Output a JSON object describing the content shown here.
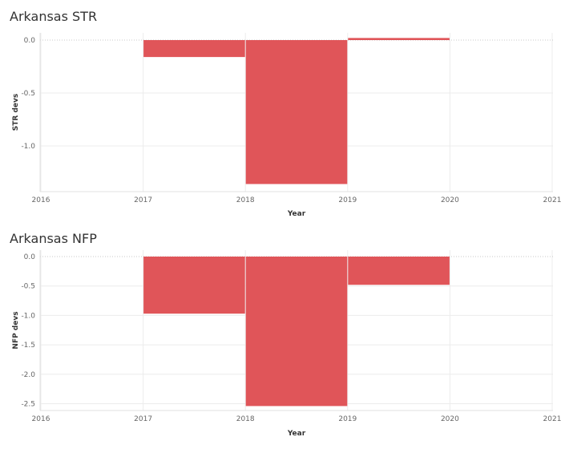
{
  "chart_data": [
    {
      "type": "bar",
      "title": "Arkansas STR",
      "xlabel": "Year",
      "ylabel": "STR devs",
      "x_ticks": [
        "2016",
        "2017",
        "2018",
        "2019",
        "2020",
        "2021"
      ],
      "y_ticks": [
        "0.0",
        "-0.5",
        "-1.0"
      ],
      "xlim": [
        2016,
        2021
      ],
      "ylim": [
        -1.42,
        0.0
      ],
      "bars": [
        {
          "start": 2017,
          "end": 2018,
          "value": -0.16
        },
        {
          "start": 2018,
          "end": 2019,
          "value": -1.36
        },
        {
          "start": 2019,
          "end": 2020,
          "value": 0.02
        }
      ],
      "bar_color": "#e05559",
      "grid": true
    },
    {
      "type": "bar",
      "title": "Arkansas NFP",
      "xlabel": "Year",
      "ylabel": "NFP devs",
      "x_ticks": [
        "2016",
        "2017",
        "2018",
        "2019",
        "2020",
        "2021"
      ],
      "y_ticks": [
        "0.0",
        "-0.5",
        "-1.0",
        "-1.5",
        "-2.0",
        "-2.5"
      ],
      "xlim": [
        2016,
        2021
      ],
      "ylim": [
        -2.6,
        0.0
      ],
      "bars": [
        {
          "start": 2017,
          "end": 2018,
          "value": -0.97
        },
        {
          "start": 2018,
          "end": 2019,
          "value": -2.54
        },
        {
          "start": 2019,
          "end": 2020,
          "value": -0.48
        }
      ],
      "bar_color": "#e05559",
      "grid": true
    }
  ]
}
